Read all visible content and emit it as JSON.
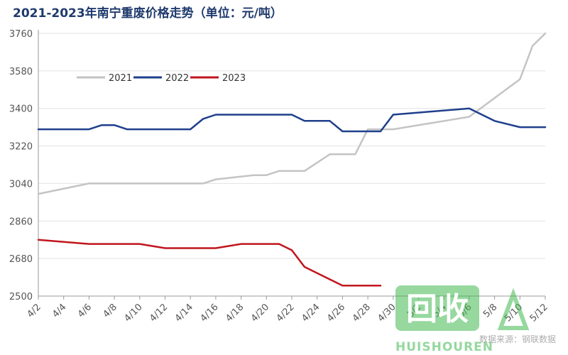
{
  "title": "2021-2023年南宁重废价格走势（单位：元/吨）",
  "watermark": {
    "logo_text": "回收",
    "brand": "HUISHOUREN",
    "source": "数据来源：钢联数据"
  },
  "colors": {
    "series_2021": "#c4c4c4",
    "series_2022": "#1f3f8c",
    "series_2023": "#c0161d",
    "title": "#1f3a6d",
    "axis": "#999999"
  },
  "chart_data": {
    "type": "line",
    "title": "2021-2023年南宁重废价格走势（单位：元/吨）",
    "xlabel": "",
    "ylabel": "",
    "ylim": [
      2500,
      3760
    ],
    "yticks": [
      2500,
      2680,
      2860,
      3040,
      3220,
      3400,
      3580,
      3760
    ],
    "xlim": [
      "4/2",
      "5/12"
    ],
    "xticks": [
      "4/2",
      "4/4",
      "4/6",
      "4/8",
      "4/10",
      "4/12",
      "4/14",
      "4/16",
      "4/18",
      "4/20",
      "4/22",
      "4/24",
      "4/26",
      "4/28",
      "4/30",
      "5/2",
      "5/4",
      "5/6",
      "5/8",
      "5/10",
      "5/12"
    ],
    "grid": "horizontal",
    "legend": "top-left",
    "series": [
      {
        "name": "2021",
        "points": [
          [
            "4/2",
            2990
          ],
          [
            "4/6",
            3040
          ],
          [
            "4/8",
            3040
          ],
          [
            "4/10",
            3040
          ],
          [
            "4/12",
            3040
          ],
          [
            "4/14",
            3040
          ],
          [
            "4/15",
            3040
          ],
          [
            "4/16",
            3060
          ],
          [
            "4/19",
            3080
          ],
          [
            "4/20",
            3080
          ],
          [
            "4/21",
            3100
          ],
          [
            "4/22",
            3100
          ],
          [
            "4/23",
            3100
          ],
          [
            "4/25",
            3180
          ],
          [
            "4/27",
            3180
          ],
          [
            "4/28",
            3300
          ],
          [
            "4/29",
            3300
          ],
          [
            "4/30",
            3300
          ],
          [
            "5/6",
            3360
          ],
          [
            "5/10",
            3540
          ],
          [
            "5/11",
            3700
          ],
          [
            "5/12",
            3760
          ]
        ]
      },
      {
        "name": "2022",
        "points": [
          [
            "4/2",
            3300
          ],
          [
            "4/6",
            3300
          ],
          [
            "4/7",
            3320
          ],
          [
            "4/8",
            3320
          ],
          [
            "4/9",
            3300
          ],
          [
            "4/12",
            3300
          ],
          [
            "4/14",
            3300
          ],
          [
            "4/15",
            3350
          ],
          [
            "4/16",
            3370
          ],
          [
            "4/22",
            3370
          ],
          [
            "4/23",
            3340
          ],
          [
            "4/25",
            3340
          ],
          [
            "4/26",
            3290
          ],
          [
            "4/29",
            3290
          ],
          [
            "4/30",
            3370
          ],
          [
            "5/6",
            3400
          ],
          [
            "5/8",
            3340
          ],
          [
            "5/10",
            3310
          ],
          [
            "5/12",
            3310
          ]
        ]
      },
      {
        "name": "2023",
        "points": [
          [
            "4/2",
            2770
          ],
          [
            "4/6",
            2750
          ],
          [
            "4/8",
            2750
          ],
          [
            "4/10",
            2750
          ],
          [
            "4/12",
            2730
          ],
          [
            "4/14",
            2730
          ],
          [
            "4/16",
            2730
          ],
          [
            "4/18",
            2750
          ],
          [
            "4/20",
            2750
          ],
          [
            "4/21",
            2750
          ],
          [
            "4/22",
            2720
          ],
          [
            "4/23",
            2640
          ],
          [
            "4/26",
            2550
          ],
          [
            "4/29",
            2550
          ]
        ]
      }
    ]
  }
}
